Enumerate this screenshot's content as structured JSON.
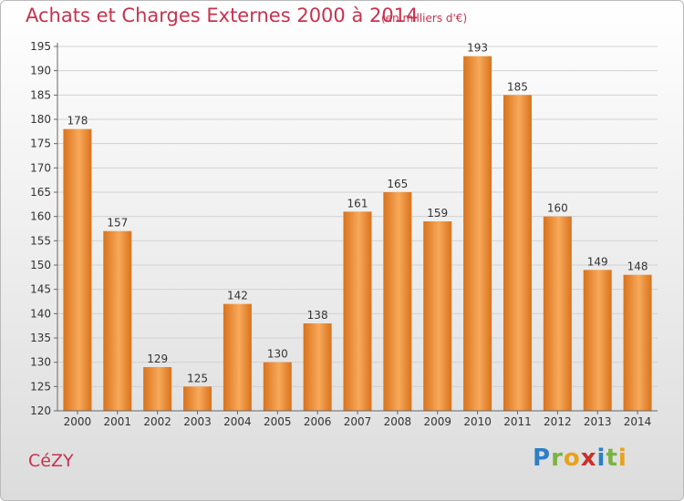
{
  "header": {
    "title": "Achats et Charges Externes 2000 à 2014",
    "subtitle": "(en milliers d'€)"
  },
  "footer": {
    "commune": "CéZY",
    "logo": {
      "letters": [
        "P",
        "r",
        "o",
        "x",
        "i",
        "t",
        "i"
      ],
      "colors": [
        "#2e7fc4",
        "#7bb342",
        "#e8a21b",
        "#c9302c",
        "#2e7fc4",
        "#7bb342",
        "#e8a21b"
      ]
    }
  },
  "colors": {
    "bar_light": "#f7a95a",
    "bar_dark": "#d9731d",
    "grid": "#d2d2d2",
    "axis": "#666666",
    "text": "#333333",
    "accent": "#c7324f"
  },
  "chart_data": {
    "type": "bar",
    "title": "Achats et Charges Externes 2000 à 2014",
    "subtitle": "(en milliers d'€)",
    "categories": [
      "2000",
      "2001",
      "2002",
      "2003",
      "2004",
      "2005",
      "2006",
      "2007",
      "2008",
      "2009",
      "2010",
      "2011",
      "2012",
      "2013",
      "2014"
    ],
    "values": [
      178,
      157,
      129,
      125,
      142,
      130,
      138,
      161,
      165,
      159,
      193,
      185,
      160,
      149,
      148
    ],
    "ylim": [
      120,
      195
    ],
    "yticks": [
      120,
      125,
      130,
      135,
      140,
      145,
      150,
      155,
      160,
      165,
      170,
      175,
      180,
      185,
      190,
      195
    ],
    "grid": true,
    "legend": "none"
  }
}
